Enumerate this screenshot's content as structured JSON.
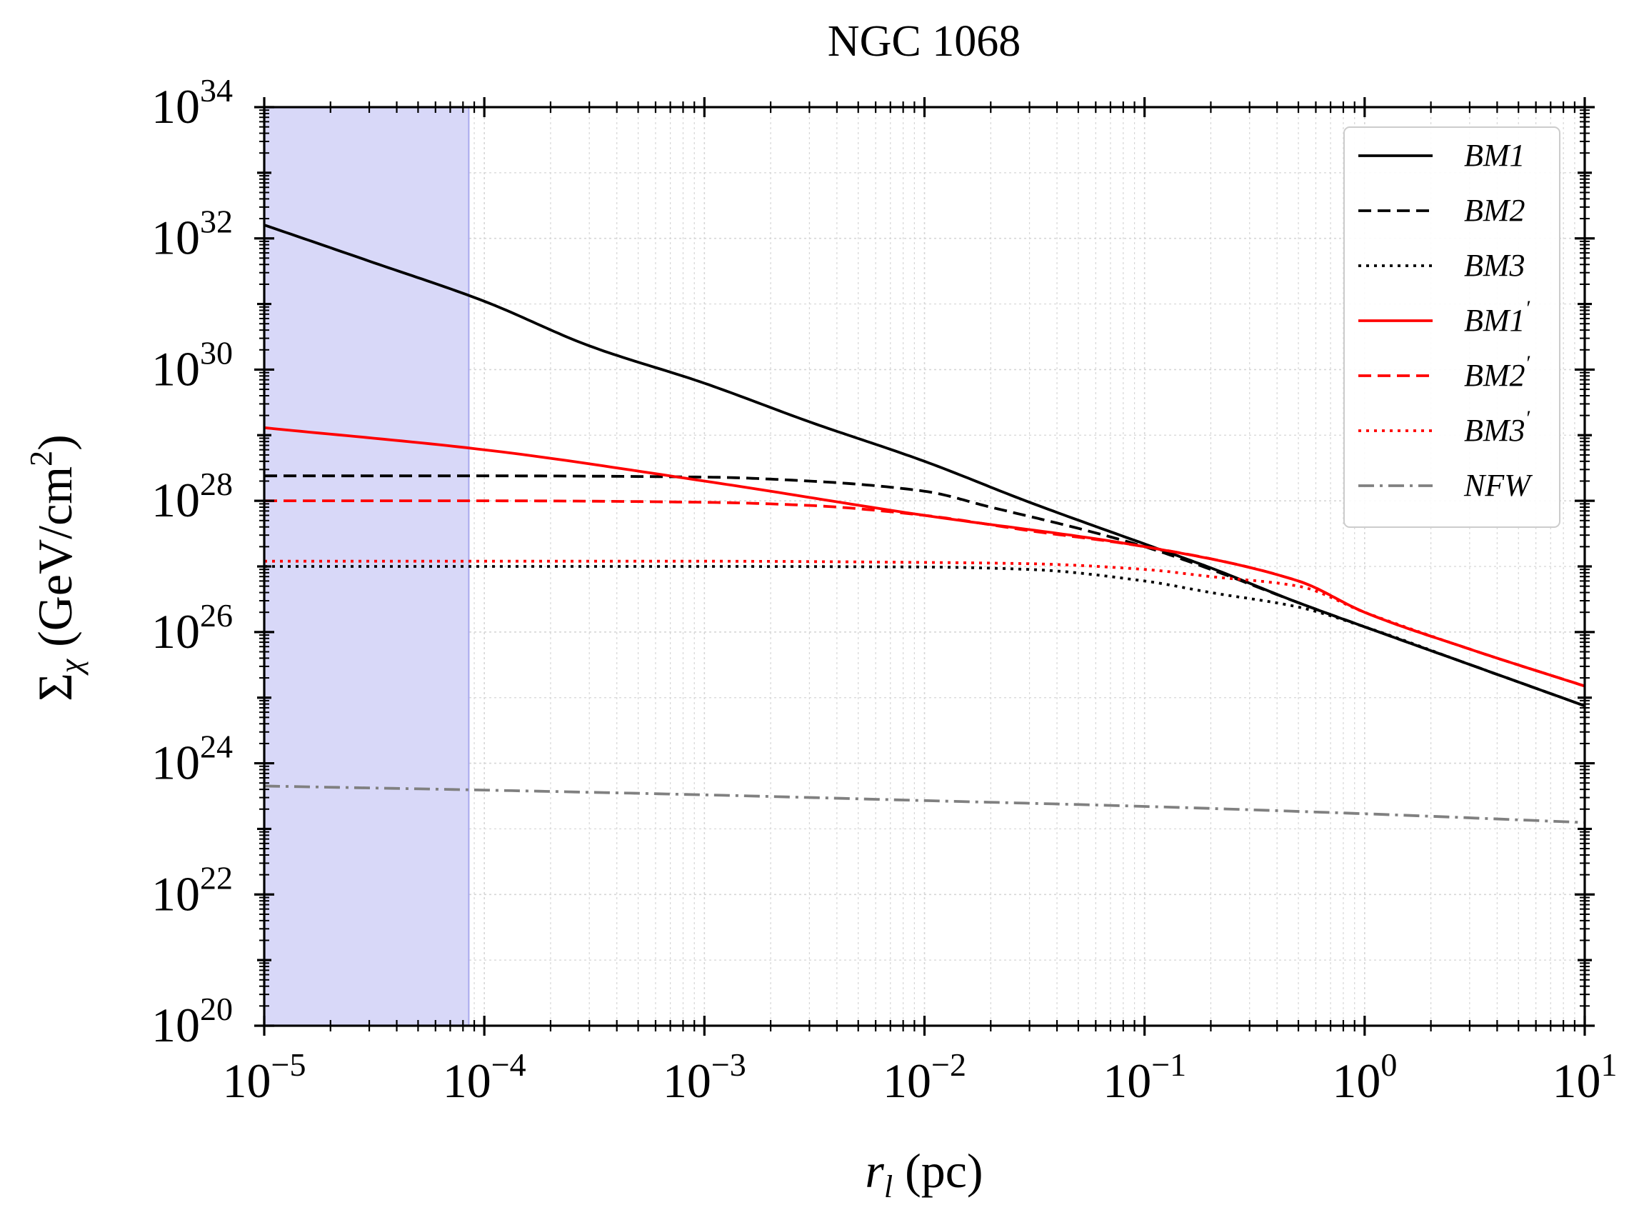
{
  "chart_data": {
    "type": "line",
    "title": "NGC 1068",
    "xlabel": "r_l (pc)",
    "ylabel": "Σ_χ (GeV/cm²)",
    "xlabel_parts": {
      "var": "r",
      "sub": "l",
      "rest": " (pc)"
    },
    "ylabel_parts": {
      "var": "Σ",
      "sub": "χ",
      "rest_a": " (GeV/cm",
      "sup": "2",
      "rest_b": ")"
    },
    "xscale": "log",
    "yscale": "log",
    "xlim": [
      1e-05,
      10
    ],
    "ylim": [
      1e+20,
      1e+34
    ],
    "grid": true,
    "x_ticks": [
      {
        "value": 1e-05,
        "base": "10",
        "exp": "−5"
      },
      {
        "value": 0.0001,
        "base": "10",
        "exp": "−4"
      },
      {
        "value": 0.001,
        "base": "10",
        "exp": "−3"
      },
      {
        "value": 0.01,
        "base": "10",
        "exp": "−2"
      },
      {
        "value": 0.1,
        "base": "10",
        "exp": "−1"
      },
      {
        "value": 1,
        "base": "10",
        "exp": "0"
      },
      {
        "value": 10,
        "base": "10",
        "exp": "1"
      }
    ],
    "y_ticks": [
      {
        "value": 1e+20,
        "base": "10",
        "exp": "20"
      },
      {
        "value": 1e+22,
        "base": "10",
        "exp": "22"
      },
      {
        "value": 1e+24,
        "base": "10",
        "exp": "24"
      },
      {
        "value": 1e+26,
        "base": "10",
        "exp": "26"
      },
      {
        "value": 1e+28,
        "base": "10",
        "exp": "28"
      },
      {
        "value": 1e+30,
        "base": "10",
        "exp": "30"
      },
      {
        "value": 1e+32,
        "base": "10",
        "exp": "32"
      },
      {
        "value": 1e+34,
        "base": "10",
        "exp": "34"
      }
    ],
    "shaded_region": {
      "x_from": 1e-05,
      "x_to": 8.5e-05,
      "color": "#d8d8f8",
      "edge": "#a8a8ee"
    },
    "legend_position": "top-right",
    "series": [
      {
        "name": "BM1",
        "prime": false,
        "color": "#000000",
        "dash": "solid",
        "x": [
          1e-05,
          3e-05,
          0.0001,
          0.0003,
          0.001,
          0.003,
          0.01,
          0.03,
          0.1,
          0.2,
          0.5,
          1,
          3,
          10
        ],
        "y": [
          1.6e+32,
          4.5e+31,
          1.1e+31,
          2.3e+30,
          6.2e+29,
          1.6e+29,
          4e+28,
          9.5e+27,
          2.2e+27,
          9.5e+26,
          2.8e+26,
          1.2e+26,
          3.2e+25,
          7.5e+24
        ]
      },
      {
        "name": "BM2",
        "prime": false,
        "color": "#000000",
        "dash": "dashed",
        "x": [
          1e-05,
          0.0001,
          0.001,
          0.003,
          0.01,
          0.02,
          0.05,
          0.1,
          0.2,
          0.5,
          1,
          3,
          10
        ],
        "y": [
          2.4e+28,
          2.4e+28,
          2.3e+28,
          2e+28,
          1.4e+28,
          8e+27,
          3.8e+27,
          2e+27,
          9e+26,
          2.8e+26,
          1.2e+26,
          3.2e+25,
          7.5e+24
        ]
      },
      {
        "name": "BM3",
        "prime": false,
        "color": "#000000",
        "dash": "dotted",
        "x": [
          1e-05,
          0.0001,
          0.001,
          0.01,
          0.03,
          0.1,
          0.2,
          0.5,
          1,
          3,
          10
        ],
        "y": [
          1e+27,
          1e+27,
          1e+27,
          9.8e+26,
          9e+26,
          6e+26,
          4e+26,
          2.4e+26,
          1.2e+26,
          3.2e+25,
          7.5e+24
        ]
      },
      {
        "name": "BM1",
        "prime": true,
        "color": "#ff0000",
        "dash": "solid",
        "x": [
          1e-05,
          0.0001,
          0.001,
          0.01,
          0.1,
          0.5,
          1,
          3,
          10
        ],
        "y": [
          1.3e+29,
          6e+28,
          2e+28,
          6e+27,
          2e+27,
          6e+26,
          2e+26,
          5.5e+25,
          1.5e+25
        ]
      },
      {
        "name": "BM2",
        "prime": true,
        "color": "#ff0000",
        "dash": "dashed",
        "x": [
          1e-05,
          0.0001,
          0.001,
          0.003,
          0.01,
          0.03,
          0.1,
          0.5,
          1,
          3,
          10
        ],
        "y": [
          1e+28,
          1e+28,
          9.5e+27,
          8.5e+27,
          6e+27,
          3.5e+27,
          2e+27,
          6e+26,
          2e+26,
          5.5e+25,
          1.5e+25
        ]
      },
      {
        "name": "BM3",
        "prime": true,
        "color": "#ff0000",
        "dash": "dotted",
        "x": [
          1e-05,
          0.0001,
          0.001,
          0.01,
          0.03,
          0.1,
          0.2,
          0.5,
          1,
          3,
          10
        ],
        "y": [
          1.2e+27,
          1.2e+27,
          1.2e+27,
          1.15e+27,
          1.1e+27,
          9e+26,
          7e+26,
          5e+26,
          2e+26,
          5.5e+25,
          1.5e+25
        ]
      },
      {
        "name": "NFW",
        "prime": false,
        "color": "#808080",
        "dash": "dashdot",
        "x": [
          1e-05,
          0.0001,
          0.001,
          0.01,
          0.1,
          1,
          10
        ],
        "y": [
          4.5e+23,
          3.9e+23,
          3.3e+23,
          2.7e+23,
          2.2e+23,
          1.7e+23,
          1.25e+23
        ]
      }
    ]
  }
}
